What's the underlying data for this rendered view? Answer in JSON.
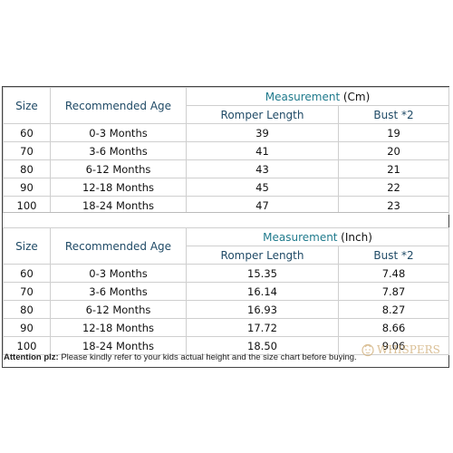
{
  "table_cm": {
    "header": {
      "size": "Size",
      "age": "Recommended Age",
      "measurement": "Measurement",
      "unit": "(Cm)",
      "romper": "Romper Length",
      "bust": "Bust *2"
    },
    "rows": [
      {
        "size": "60",
        "age": "0-3 Months",
        "romper": "39",
        "bust": "19"
      },
      {
        "size": "70",
        "age": "3-6 Months",
        "romper": "41",
        "bust": "20"
      },
      {
        "size": "80",
        "age": "6-12 Months",
        "romper": "43",
        "bust": "21"
      },
      {
        "size": "90",
        "age": "12-18 Months",
        "romper": "45",
        "bust": "22"
      },
      {
        "size": "100",
        "age": "18-24 Months",
        "romper": "47",
        "bust": "23"
      }
    ]
  },
  "table_inch": {
    "header": {
      "size": "Size",
      "age": "Recommended Age",
      "measurement": "Measurement",
      "unit": "(Inch)",
      "romper": "Romper Length",
      "bust": "Bust *2"
    },
    "rows": [
      {
        "size": "60",
        "age": "0-3 Months",
        "romper": "15.35",
        "bust": "7.48"
      },
      {
        "size": "70",
        "age": "3-6 Months",
        "romper": "16.14",
        "bust": "7.87"
      },
      {
        "size": "80",
        "age": "6-12 Months",
        "romper": "16.93",
        "bust": "8.27"
      },
      {
        "size": "90",
        "age": "12-18 Months",
        "romper": "17.72",
        "bust": "8.66"
      },
      {
        "size": "100",
        "age": "18-24 Months",
        "romper": "18.50",
        "bust": "9.06"
      }
    ]
  },
  "note": {
    "label": "Attention plz:",
    "text": "Please kindly refer to your kids actual height and the size chart before buying."
  },
  "watermark": {
    "text": "WHISPERS",
    "icon": "baby-face-icon"
  }
}
